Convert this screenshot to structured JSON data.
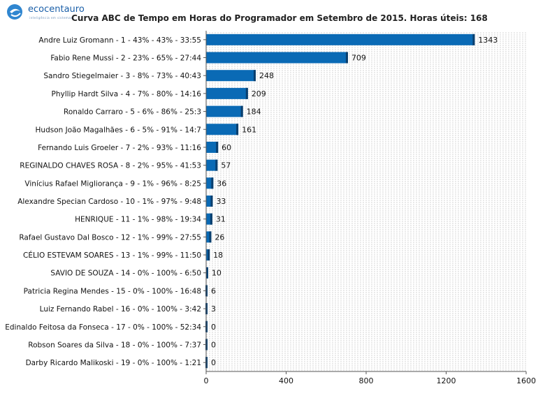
{
  "logo": {
    "name": "ecocentauro",
    "tagline": "inteligência em sistemas"
  },
  "chart_data": {
    "type": "bar",
    "orientation": "horizontal",
    "title": "Curva ABC de Tempo em Horas do Programador em Setembro de 2015. Horas úteis: 168",
    "xlim": [
      0,
      1600
    ],
    "xticks": [
      0,
      400,
      800,
      1200,
      1600
    ],
    "grid": true,
    "bar_color": "#0a6ab5",
    "bar_shade": "#0a3f6e",
    "categories": [
      "Andre Luiz Gromann  -  1  -  43%  -  43%  -  33:55",
      "Fabio Rene Mussi  -  2  -  23%  -  65%  -  27:44",
      "Sandro Stiegelmaier  -  3  -  8%  -  73%  -  40:43",
      "Phyllip Hardt Silva  -  4  -  7%  -  80%  -  14:16",
      "Ronaldo Carraro  -  5  -  6%  -  86%  -  25:3",
      "Hudson João Magalhães  -  6  -  5%  -  91%  -  14:7",
      "Fernando Luis Groeler  -  7  -  2%  -  93%  -  11:16",
      "REGINALDO CHAVES ROSA  -  8  -  2%  -  95%  -  41:53",
      "Vinícius Rafael Migliorança  -  9  -  1%  -  96%  -  8:25",
      "Alexandre Specian Cardoso  -  10  -  1%  -  97%  -  9:48",
      "HENRIQUE  -  11  -  1%  -  98%  -  19:34",
      "Rafael Gustavo Dal Bosco  -  12  -  1%  -  99%  -  27:55",
      "CÉLIO ESTEVAM SOARES  -  13  -  1%  -  99%  -  11:50",
      "SAVIO DE SOUZA  -  14  -  0%  -  100%  -  6:50",
      "Patricia Regina Mendes  -  15  -  0%  -  100%  -  16:48",
      "Luiz Fernando Rabel  -  16  -  0%  -  100%  -  3:42",
      "Edinaldo Feitosa da Fonseca  -  17  -  0%  -  100%  -  52:34",
      "Robson Soares da Silva  -  18  -  0%  -  100%  -  7:37",
      "Darby Ricardo Malikoski  -  19  -  0%  -  100%  -  1:21"
    ],
    "values": [
      1343,
      709,
      248,
      209,
      184,
      161,
      60,
      57,
      36,
      33,
      31,
      26,
      18,
      10,
      6,
      3,
      0,
      0,
      0
    ]
  }
}
